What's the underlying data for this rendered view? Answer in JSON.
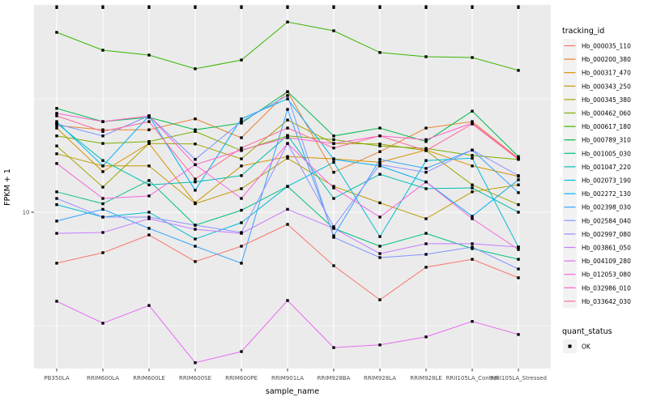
{
  "figure": {
    "background": "#ffffff",
    "panel_background": "#ebebeb",
    "gridline_color": "#ffffff",
    "point_color": "#000000"
  },
  "legend": {
    "tracking_id_title": "tracking_id",
    "quant_status_title": "quant_status",
    "quant_items": [
      {
        "label": "OK",
        "marker": "black-square"
      }
    ]
  },
  "chart_data": {
    "type": "line",
    "title": "",
    "xlabel": "sample_name",
    "ylabel": "FPKM + 1",
    "y_scale": "log10",
    "y_tick_values": [
      10
    ],
    "y_tick_labels": [
      "10"
    ],
    "ylim": [
      2.1,
      82
    ],
    "legend_position": "right",
    "grid": true,
    "point_marker": "square",
    "x_categories": [
      "PB350LA",
      "RRIM600LA",
      "RRIM600LE",
      "RRIM600SE",
      "RRIM600PE",
      "RRIM901LA",
      "RRIM928BA",
      "RRIM928LA",
      "RRIM928LE",
      "RRII105LA_Control",
      "RRII105LA_Stressed"
    ],
    "series": [
      {
        "name": "Hb_000035_110",
        "color": "#F8766D",
        "values": [
          5.96,
          6.63,
          7.94,
          6.06,
          7.08,
          8.84,
          5.81,
          4.11,
          5.72,
          6.2,
          5.14
        ]
      },
      {
        "name": "Hb_000200_380",
        "color": "#EA8331",
        "values": [
          24.1,
          23.1,
          23.1,
          25.8,
          21.3,
          34.0,
          15.0,
          18.5,
          23.5,
          25.1,
          17.3
        ]
      },
      {
        "name": "Hb_000317_470",
        "color": "#D89000",
        "values": [
          23.5,
          15.1,
          20.1,
          11.0,
          16.0,
          17.6,
          17.2,
          16.6,
          18.8,
          16.0,
          14.4
        ]
      },
      {
        "name": "Hb_000343_250",
        "color": "#C09B00",
        "values": [
          18.1,
          16.0,
          16.0,
          10.9,
          12.7,
          17.3,
          13.0,
          11.0,
          9.36,
          12.3,
          13.2
        ]
      },
      {
        "name": "Hb_000345_380",
        "color": "#A3A500",
        "values": [
          19.6,
          12.9,
          20.1,
          20.0,
          17.2,
          25.5,
          20.1,
          20.0,
          18.7,
          13.2,
          10.8
        ]
      },
      {
        "name": "Hb_000462_060",
        "color": "#7CAE00",
        "values": [
          21.7,
          20.1,
          20.5,
          22.7,
          18.7,
          21.7,
          20.9,
          19.6,
          19.1,
          17.8,
          17.1
        ]
      },
      {
        "name": "Hb_000617_180",
        "color": "#39B600",
        "values": [
          62.1,
          51.8,
          49.3,
          42.9,
          46.9,
          69.0,
          63.1,
          50.6,
          48.5,
          48.1,
          42.2
        ]
      },
      {
        "name": "Hb_000789_310",
        "color": "#00BB4E",
        "values": [
          28.7,
          25.1,
          26.2,
          23.1,
          24.7,
          34.0,
          21.7,
          23.5,
          20.5,
          27.9,
          17.6
        ]
      },
      {
        "name": "Hb_001005_030",
        "color": "#00C081",
        "values": [
          12.3,
          10.9,
          13.8,
          8.77,
          10.2,
          13.0,
          8.49,
          7.08,
          8.07,
          6.91,
          6.2
        ]
      },
      {
        "name": "Hb_001047_220",
        "color": "#00C0AF",
        "values": [
          24.7,
          16.9,
          13.2,
          13.6,
          14.5,
          21.8,
          11.5,
          14.7,
          12.7,
          12.8,
          10.0
        ]
      },
      {
        "name": "Hb_002073_190",
        "color": "#00BCD8",
        "values": [
          10.8,
          9.52,
          10.0,
          7.62,
          8.99,
          13.0,
          16.6,
          7.81,
          16.9,
          17.3,
          7.02
        ]
      },
      {
        "name": "Hb_002272_130",
        "color": "#00B0F6",
        "values": [
          25.1,
          16.0,
          26.6,
          12.5,
          25.8,
          31.6,
          17.1,
          16.0,
          13.6,
          9.6,
          13.9
        ]
      },
      {
        "name": "Hb_002398_030",
        "color": "#35A2FF",
        "values": [
          9.14,
          10.3,
          8.49,
          7.08,
          5.96,
          28.4,
          7.87,
          17.1,
          15.6,
          18.8,
          12.2
        ]
      },
      {
        "name": "Hb_002584_040",
        "color": "#7F96FF",
        "values": [
          24.5,
          21.7,
          26.6,
          17.1,
          25.1,
          32.7,
          7.75,
          6.31,
          6.52,
          7.02,
          5.62
        ]
      },
      {
        "name": "Hb_002997_080",
        "color": "#9590FF",
        "values": [
          11.5,
          9.52,
          9.52,
          8.77,
          8.14,
          20.1,
          8.63,
          16.2,
          15.0,
          18.8,
          14.5
        ]
      },
      {
        "name": "Hb_003861_050",
        "color": "#C77CFF",
        "values": [
          8.07,
          8.14,
          9.36,
          8.41,
          8.07,
          10.3,
          8.49,
          6.57,
          7.26,
          7.26,
          7.02
        ]
      },
      {
        "name": "Hb_004109_280",
        "color": "#E76BF3",
        "values": [
          4.05,
          3.24,
          3.88,
          2.17,
          2.43,
          4.08,
          2.53,
          2.6,
          2.82,
          3.3,
          2.89
        ]
      },
      {
        "name": "Hb_012053_080",
        "color": "#F763E0",
        "values": [
          16.4,
          11.5,
          11.8,
          16.2,
          11.5,
          20.1,
          12.8,
          9.52,
          13.6,
          9.36,
          6.85
        ]
      },
      {
        "name": "Hb_032986_010",
        "color": "#FF61C9",
        "values": [
          27.3,
          25.1,
          26.6,
          16.2,
          18.8,
          21.3,
          20.1,
          21.7,
          20.9,
          24.7,
          17.2
        ]
      },
      {
        "name": "Hb_033642_030",
        "color": "#FF689F",
        "values": [
          26.6,
          22.7,
          25.1,
          14.0,
          19.2,
          23.5,
          19.2,
          21.7,
          18.7,
          24.5,
          17.1
        ]
      }
    ],
    "top_edge_marks": [
      0,
      1,
      2,
      3,
      4,
      5,
      6,
      7,
      8,
      9,
      10
    ]
  }
}
